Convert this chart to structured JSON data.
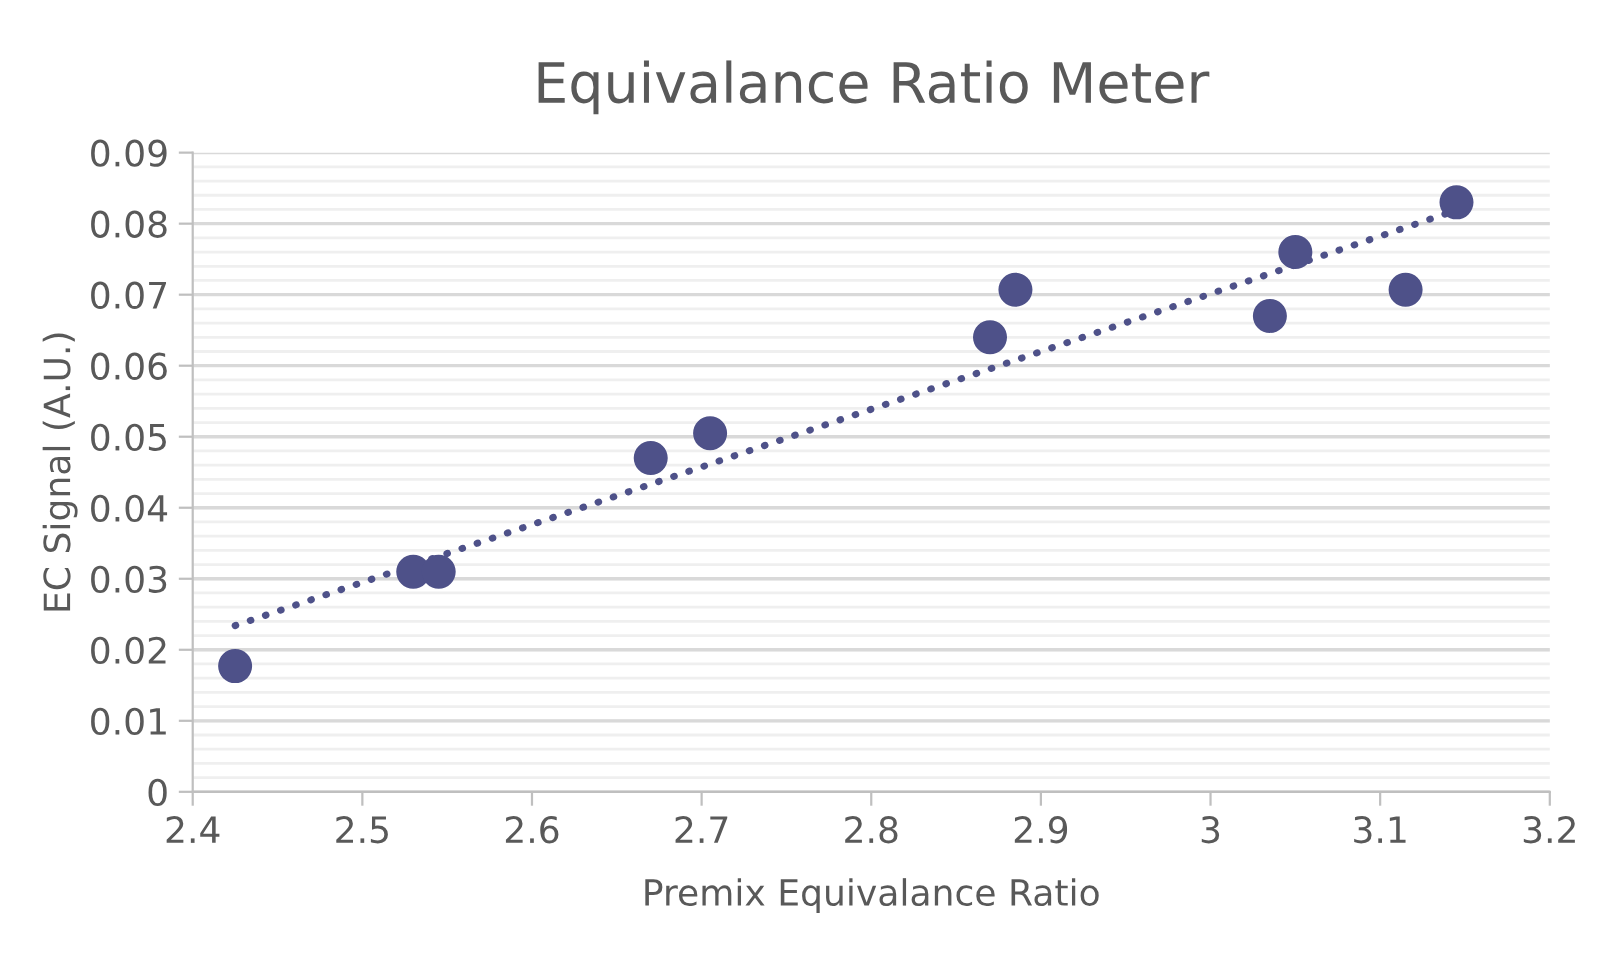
{
  "chart_data": {
    "type": "scatter",
    "title": "Equivalance Ratio Meter",
    "xlabel": "Premix Equivalance Ratio",
    "ylabel": "EC Signal (A.U.)",
    "series": [
      {
        "color": "#4e5189",
        "marker": "circle",
        "x": [
          2.425,
          2.53,
          2.545,
          2.67,
          2.705,
          2.87,
          2.885,
          3.035,
          3.05,
          3.115,
          3.145
        ],
        "values": [
          0.0177,
          0.031,
          0.031,
          0.047,
          0.0505,
          0.064,
          0.0707,
          0.067,
          0.076,
          0.0707,
          0.083
        ]
      },
      {
        "type": "line",
        "color": "#4e5189",
        "line_style": "dotted",
        "marker": "none",
        "x": [
          2.425,
          3.145
        ],
        "values": [
          0.0234,
          0.0819
        ]
      }
    ],
    "xlim": [
      2.4,
      3.2
    ],
    "xticks": [
      2.4,
      2.5,
      2.6,
      2.7,
      2.8,
      2.9,
      3,
      3.1,
      3.2
    ],
    "ylim": [
      0,
      0.09
    ],
    "yticks": [
      0,
      0.01,
      0.02,
      0.03,
      0.04,
      0.05,
      0.06,
      0.07,
      0.08,
      0.09
    ],
    "grid": "y",
    "legend": false
  }
}
